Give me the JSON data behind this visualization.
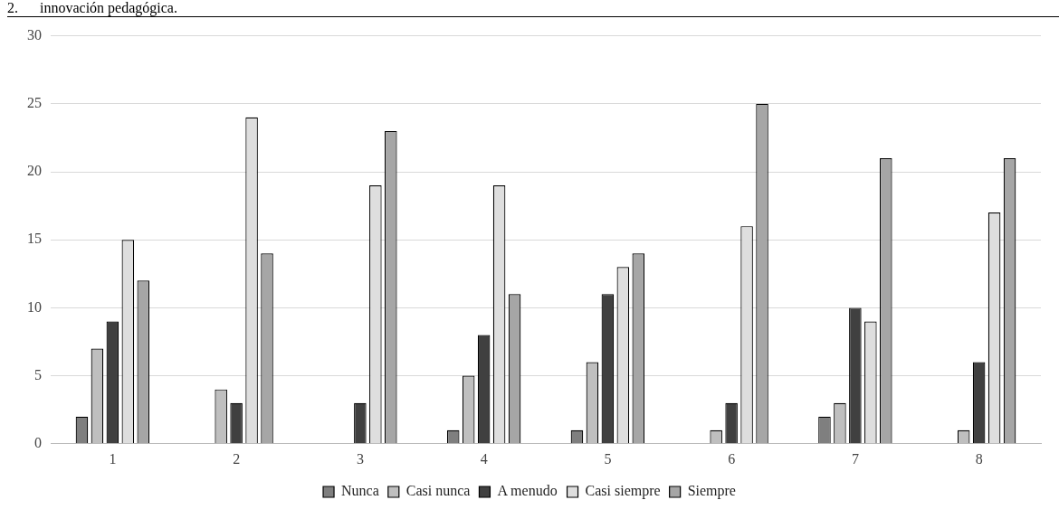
{
  "chart_data": {
    "type": "bar",
    "title": "2.      innovación pedagógica.",
    "categories": [
      "1",
      "2",
      "3",
      "4",
      "5",
      "6",
      "7",
      "8"
    ],
    "series": [
      {
        "name": "Nunca",
        "color": "#7f7f7f",
        "values": [
          2,
          0,
          0,
          1,
          1,
          0,
          2,
          0
        ]
      },
      {
        "name": "Casi nunca",
        "color": "#bfbfbf",
        "values": [
          7,
          4,
          0,
          5,
          6,
          1,
          3,
          1
        ]
      },
      {
        "name": "A menudo",
        "color": "#404040",
        "values": [
          9,
          3,
          3,
          8,
          11,
          3,
          10,
          6
        ]
      },
      {
        "name": "Casi siempre",
        "color": "#dedede",
        "values": [
          15,
          24,
          19,
          19,
          13,
          16,
          9,
          17
        ]
      },
      {
        "name": "Siempre",
        "color": "#a6a6a6",
        "values": [
          12,
          14,
          23,
          11,
          14,
          25,
          21,
          21
        ]
      }
    ],
    "ylim": [
      0,
      30
    ],
    "yticks": [
      0,
      5,
      10,
      15,
      20,
      25,
      30
    ],
    "grid": "y",
    "legend": "bottom"
  }
}
